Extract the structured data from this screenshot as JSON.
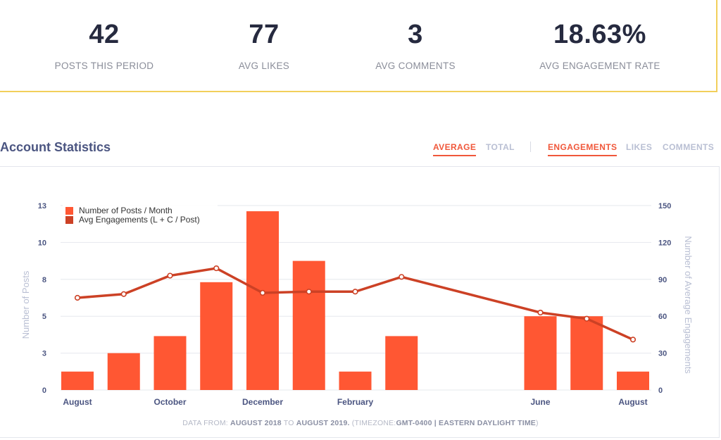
{
  "summary": {
    "posts": {
      "value": "42",
      "label": "POSTS THIS PERIOD"
    },
    "likes": {
      "value": "77",
      "label": "AVG LIKES"
    },
    "comments": {
      "value": "3",
      "label": "AVG COMMENTS"
    },
    "engagement": {
      "value": "18.63%",
      "label": "AVG ENGAGEMENT RATE"
    }
  },
  "section_title": "Account Statistics",
  "tabs": {
    "average": "AVERAGE",
    "total": "TOTAL",
    "engagements": "ENGAGEMENTS",
    "likes": "LIKES",
    "comments": "COMMENTS"
  },
  "footer": {
    "prefix": "DATA FROM:",
    "from": "AUGUST 2018",
    "to_word": "TO",
    "to": "AUGUST 2019.",
    "tz_prefix": "(TIMEZONE:",
    "tz": "GMT-0400 | EASTERN DAYLIGHT TIME",
    "tz_suffix": ")"
  },
  "colors": {
    "bar": "#ff5733",
    "line": "#cc4125",
    "accent": "#f0573a",
    "grid": "#e6e8ee",
    "axis_text": "#4b5581",
    "axis_label": "#b9bfd3",
    "stats_border": "#f2cf5b"
  },
  "chart_data": {
    "type": "bar",
    "categories": [
      "2018-08",
      "2018-09",
      "2018-10",
      "2018-11",
      "2018-12",
      "2019-01",
      "2019-02",
      "2019-03",
      "2019-04",
      "2019-05",
      "2019-06",
      "2019-07",
      "2019-08"
    ],
    "x_tick_labels": [
      "August",
      "",
      "October",
      "",
      "December",
      "",
      "February",
      "",
      "",
      "",
      "June",
      "",
      "August"
    ],
    "series": [
      {
        "name": "Number of Posts / Month",
        "type": "bar",
        "axis": "left",
        "values": [
          1.3,
          2.6,
          3.8,
          7.6,
          12.6,
          9.1,
          1.3,
          3.8,
          0,
          0,
          5.2,
          5.2,
          1.3
        ]
      },
      {
        "name": "Avg Engagements (L + C / Post)",
        "type": "line",
        "axis": "right",
        "values": [
          75,
          78,
          93,
          99,
          79,
          80,
          80,
          92,
          null,
          null,
          63,
          58,
          41
        ]
      }
    ],
    "y_left": {
      "label": "Number of Posts",
      "ylim": [
        0,
        13
      ],
      "ticks": [
        "0",
        "3",
        "5",
        "8",
        "10",
        "13"
      ]
    },
    "y_right": {
      "label": "Number of Average Engagements",
      "ylim": [
        0,
        150
      ],
      "ticks": [
        "0",
        "30",
        "60",
        "90",
        "120",
        "150"
      ]
    },
    "grid": true,
    "legend": "top-left"
  }
}
